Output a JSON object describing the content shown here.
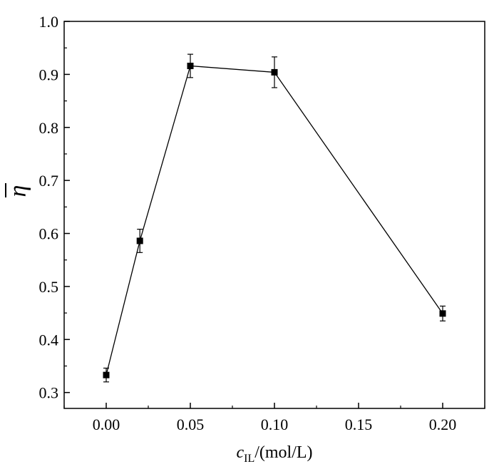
{
  "chart_data": {
    "type": "line",
    "xlabel": {
      "symbol": "c",
      "subscript": "IL",
      "unit": "/(mol/L)"
    },
    "ylabel": {
      "symbol": "η",
      "overline": true
    },
    "xlim": [
      -0.025,
      0.225
    ],
    "ylim": [
      0.27,
      1.0
    ],
    "xticks": [
      0.0,
      0.05,
      0.1,
      0.15,
      0.2
    ],
    "xtick_labels": [
      "0.00",
      "0.05",
      "0.10",
      "0.15",
      "0.20"
    ],
    "yticks": [
      0.3,
      0.4,
      0.5,
      0.6,
      0.7,
      0.8,
      0.9,
      1.0
    ],
    "ytick_labels": [
      "0.3",
      "0.4",
      "0.5",
      "0.6",
      "0.7",
      "0.8",
      "0.9",
      "1.0"
    ],
    "grid": false,
    "legend": false,
    "series": [
      {
        "marker": "square",
        "color": "#000000",
        "x": [
          0.0,
          0.02,
          0.05,
          0.1,
          0.2
        ],
        "y": [
          0.333,
          0.586,
          0.916,
          0.904,
          0.449
        ],
        "yerr": [
          0.013,
          0.022,
          0.022,
          0.029,
          0.014
        ]
      }
    ]
  }
}
